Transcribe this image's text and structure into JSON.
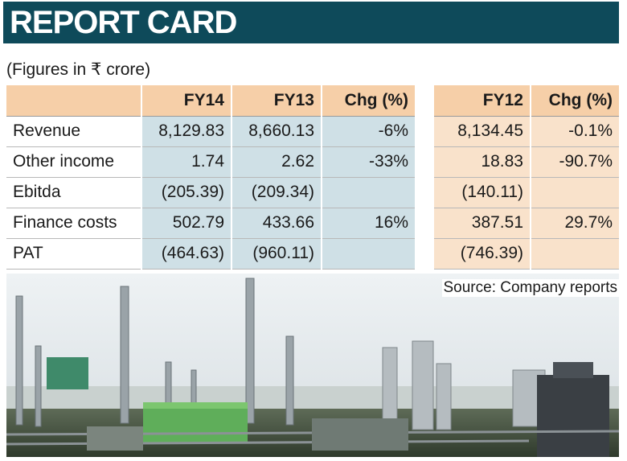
{
  "header": {
    "title": "REPORT CARD"
  },
  "subtitle": "(Figures in ₹ crore)",
  "table": {
    "columns": [
      "",
      "FY14",
      "FY13",
      "Chg (%)",
      "FY12",
      "Chg (%)"
    ],
    "rows": [
      {
        "label": "Revenue",
        "fy14": "8,129.83",
        "fy13": "8,660.13",
        "chg": "-6%",
        "fy12": "8,134.45",
        "chg12": "-0.1%"
      },
      {
        "label": "Other income",
        "fy14": "1.74",
        "fy13": "2.62",
        "chg": "-33%",
        "fy12": "18.83",
        "chg12": "-90.7%"
      },
      {
        "label": "Ebitda",
        "fy14": "(205.39)",
        "fy13": "(209.34)",
        "chg": "",
        "fy12": "(140.11)",
        "chg12": ""
      },
      {
        "label": "Finance costs",
        "fy14": "502.79",
        "fy13": "433.66",
        "chg": "16%",
        "fy12": "387.51",
        "chg12": "29.7%"
      },
      {
        "label": "PAT",
        "fy14": "(464.63)",
        "fy13": "(960.11)",
        "chg": "",
        "fy12": "(746.39)",
        "chg12": ""
      }
    ]
  },
  "source": "Source: Company reports",
  "colors": {
    "banner": "#0e4a5a",
    "header_row": "#f6cfa8",
    "left_cells": "#cfe0e6",
    "right_cells": "#f9e2cb"
  }
}
